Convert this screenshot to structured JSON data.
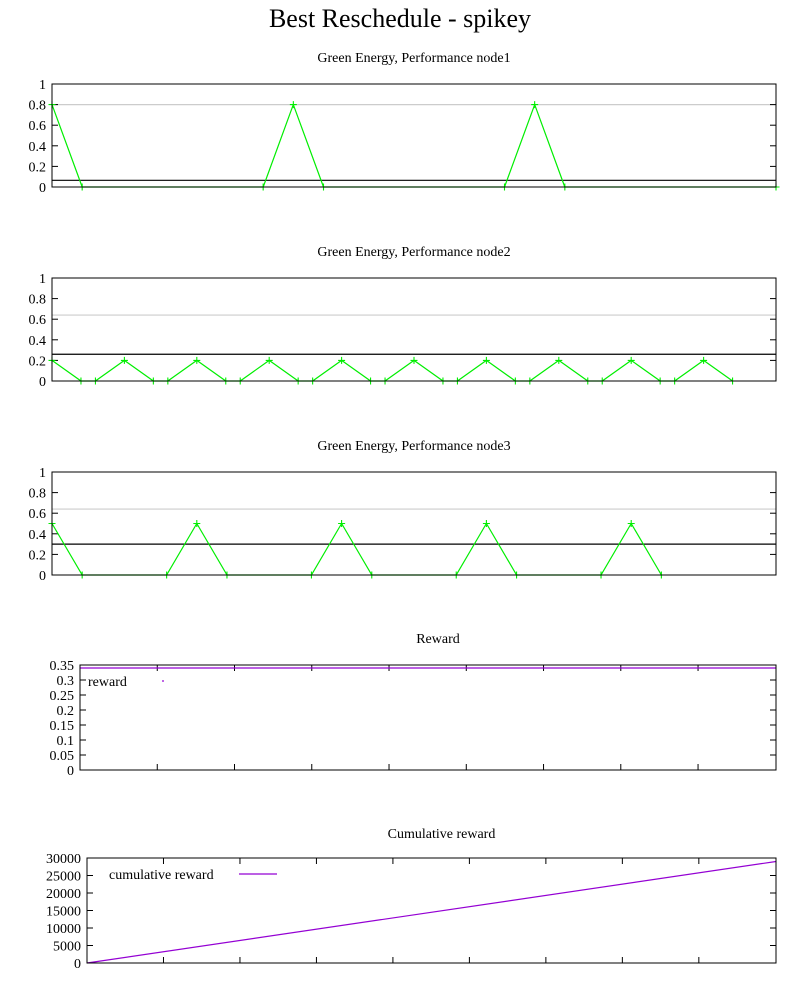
{
  "page_title": "Best Reschedule - spikey",
  "chart_data": [
    {
      "type": "line",
      "title": "Green Energy, Performance node1",
      "xlabel": "",
      "ylabel": "",
      "xlim": [
        0,
        24
      ],
      "ylim": [
        0,
        1
      ],
      "yticks": [
        "0",
        "0.2",
        "0.4",
        "0.6",
        "0.8",
        "1"
      ],
      "ytick_values": [
        0,
        0.2,
        0.4,
        0.6,
        0.8,
        1
      ],
      "grid": false,
      "legend": "none",
      "series": [
        {
          "color": "#00ee00",
          "marker": "plus",
          "x": [
            0,
            1,
            7,
            8,
            9,
            15,
            16,
            17,
            24
          ],
          "y": [
            0.8,
            0,
            0,
            0.8,
            0,
            0,
            0.8,
            0,
            0
          ]
        }
      ],
      "reference_lines": [
        {
          "y": 0.8,
          "color": "#cccccc"
        },
        {
          "y": 0.065,
          "color": "#000000"
        }
      ]
    },
    {
      "type": "line",
      "title": "Green Energy, Performance node2",
      "xlabel": "",
      "ylabel": "",
      "xlim": [
        0,
        30
      ],
      "ylim": [
        0,
        1
      ],
      "yticks": [
        "0",
        "0.2",
        "0.4",
        "0.6",
        "0.8",
        "1"
      ],
      "ytick_values": [
        0,
        0.2,
        0.4,
        0.6,
        0.8,
        1
      ],
      "grid": false,
      "legend": "none",
      "series": [
        {
          "color": "#00ee00",
          "marker": "plus",
          "x": [
            0,
            1.2,
            1.8,
            3,
            4.2,
            4.8,
            6,
            7.2,
            7.8,
            9,
            10.2,
            10.8,
            12,
            13.2,
            13.8,
            15,
            16.2,
            16.8,
            18,
            19.2,
            19.8,
            21,
            22.2,
            22.8,
            24,
            25.2,
            25.8,
            27,
            28.2
          ],
          "y": [
            0.2,
            0,
            0,
            0.2,
            0,
            0,
            0.2,
            0,
            0,
            0.2,
            0,
            0,
            0.2,
            0,
            0,
            0.2,
            0,
            0,
            0.2,
            0,
            0,
            0.2,
            0,
            0,
            0.2,
            0,
            0,
            0.2,
            0
          ]
        }
      ],
      "reference_lines": [
        {
          "y": 0.64,
          "color": "#cccccc"
        },
        {
          "y": 0.26,
          "color": "#000000"
        }
      ]
    },
    {
      "type": "line",
      "title": "Green Energy, Performance node3",
      "xlabel": "",
      "ylabel": "",
      "xlim": [
        0,
        24
      ],
      "ylim": [
        0,
        1
      ],
      "yticks": [
        "0",
        "0.2",
        "0.4",
        "0.6",
        "0.8",
        "1"
      ],
      "ytick_values": [
        0,
        0.2,
        0.4,
        0.6,
        0.8,
        1
      ],
      "grid": false,
      "legend": "none",
      "series": [
        {
          "color": "#00ee00",
          "marker": "plus",
          "x": [
            0,
            1,
            3.8,
            4.8,
            5.8,
            8.6,
            9.6,
            10.6,
            13.4,
            14.4,
            15.4,
            18.2,
            19.2,
            20.2
          ],
          "y": [
            0.5,
            0,
            0,
            0.5,
            0,
            0,
            0.5,
            0,
            0,
            0.5,
            0,
            0,
            0.5,
            0
          ]
        }
      ],
      "reference_lines": [
        {
          "y": 0.64,
          "color": "#cccccc"
        },
        {
          "y": 0.3,
          "color": "#000000"
        }
      ]
    },
    {
      "type": "line",
      "title": "Reward",
      "xlabel": "",
      "ylabel": "",
      "xlim": [
        0,
        100
      ],
      "ylim": [
        0,
        0.35
      ],
      "yticks": [
        "0",
        "0.05",
        "0.1",
        "0.15",
        "0.2",
        "0.25",
        "0.3",
        "0.35"
      ],
      "ytick_values": [
        0,
        0.05,
        0.1,
        0.15,
        0.2,
        0.25,
        0.3,
        0.35
      ],
      "xtick_values": [
        0,
        11.1,
        22.2,
        33.3,
        44.4,
        55.5,
        66.6,
        77.7,
        88.8,
        100
      ],
      "grid": false,
      "legend": "top-left",
      "series": [
        {
          "name": "reward",
          "color": "#9400d3",
          "marker": "none",
          "x": [
            0,
            100
          ],
          "y": [
            0.34,
            0.34
          ]
        }
      ],
      "reference_lines": []
    },
    {
      "type": "line",
      "title": "Cumulative reward",
      "xlabel": "",
      "ylabel": "",
      "xlim": [
        0,
        100
      ],
      "ylim": [
        0,
        30000
      ],
      "yticks": [
        "0",
        "5000",
        "10000",
        "15000",
        "20000",
        "25000",
        "30000"
      ],
      "ytick_values": [
        0,
        5000,
        10000,
        15000,
        20000,
        25000,
        30000
      ],
      "xtick_values": [
        0,
        11.1,
        22.2,
        33.3,
        44.4,
        55.5,
        66.6,
        77.7,
        88.8,
        100
      ],
      "grid": false,
      "legend": "top-left",
      "series": [
        {
          "name": "cumulative reward",
          "color": "#9400d3",
          "marker": "none",
          "x": [
            0,
            100
          ],
          "y": [
            0,
            29000
          ]
        }
      ],
      "reference_lines": []
    }
  ]
}
